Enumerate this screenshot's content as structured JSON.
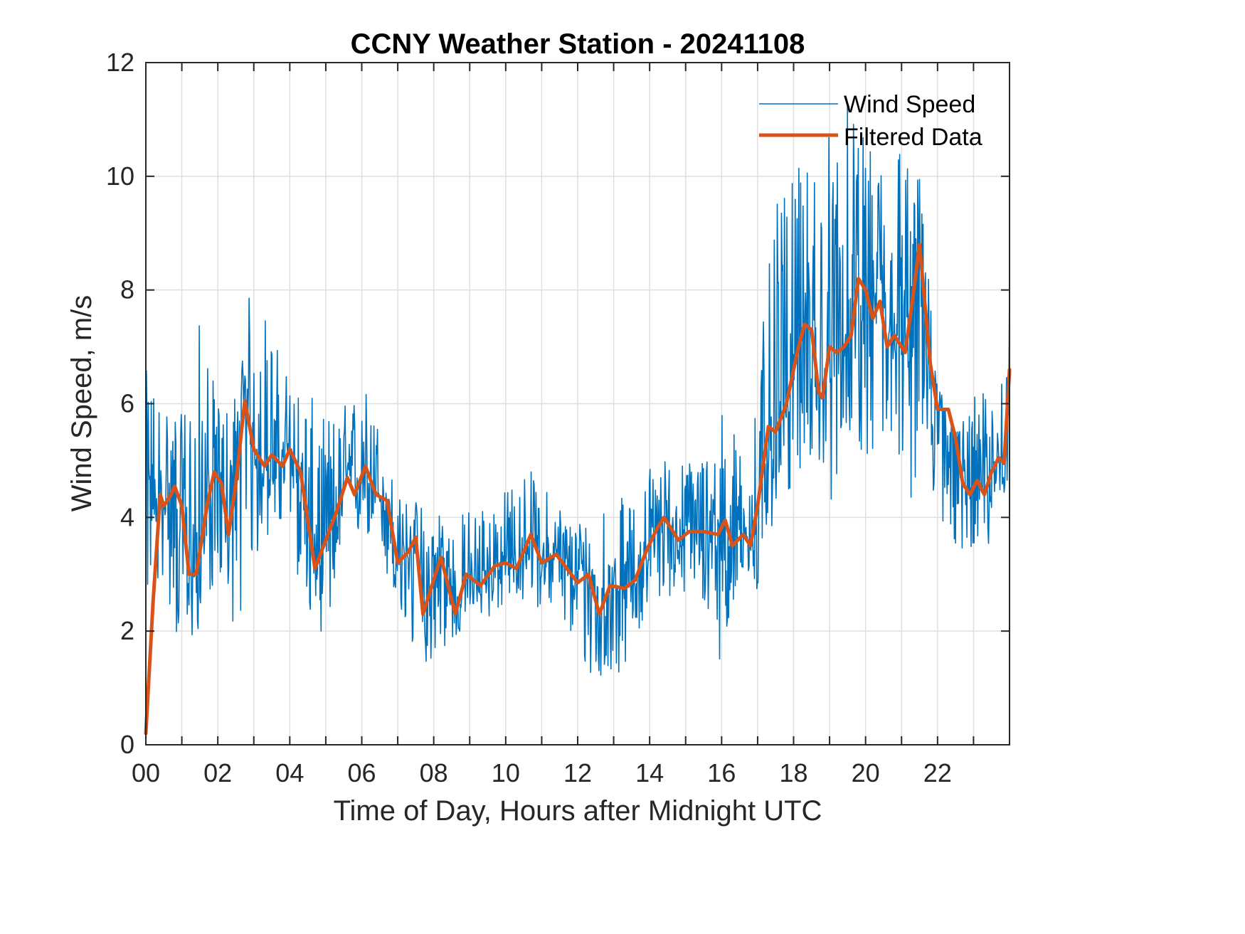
{
  "chart_data": {
    "type": "line",
    "title": "CCNY Weather Station - 20241108",
    "xlabel": "Time of Day, Hours after Midnight UTC",
    "ylabel": "Wind Speed, m/s",
    "xlim": [
      0,
      24
    ],
    "ylim": [
      0,
      12
    ],
    "grid": true,
    "legend_position": "top-right",
    "x_ticks": [
      0,
      2,
      4,
      6,
      8,
      10,
      12,
      14,
      16,
      18,
      20,
      22
    ],
    "x_tick_labels": [
      "00",
      "02",
      "04",
      "06",
      "08",
      "10",
      "12",
      "14",
      "16",
      "18",
      "20",
      "22"
    ],
    "x_minor_ticks": [
      1,
      3,
      5,
      7,
      9,
      11,
      13,
      15,
      17,
      19,
      21,
      23
    ],
    "y_ticks": [
      0,
      2,
      4,
      6,
      8,
      10,
      12
    ],
    "y_tick_labels": [
      "0",
      "2",
      "4",
      "6",
      "8",
      "10",
      "12"
    ],
    "colors": {
      "wind_speed": "#0072BD",
      "filtered": "#D95319",
      "axis": "#262626",
      "grid": "#DFDFDF"
    },
    "series": [
      {
        "name": "Wind Speed",
        "style": "thin-line",
        "description": "High-frequency raw samples; values given as the local band (low, high) around the filtered trend per sampled hour",
        "envelope": {
          "x": [
            0.0,
            0.5,
            1.0,
            1.5,
            2.0,
            2.5,
            3.0,
            3.5,
            4.0,
            4.5,
            5.0,
            5.5,
            6.0,
            6.5,
            7.0,
            7.5,
            8.0,
            8.5,
            9.0,
            9.5,
            10.0,
            10.5,
            11.0,
            11.5,
            12.0,
            12.5,
            13.0,
            13.5,
            14.0,
            14.5,
            15.0,
            15.5,
            16.0,
            16.5,
            17.0,
            17.5,
            18.0,
            18.5,
            19.0,
            19.5,
            20.0,
            20.5,
            21.0,
            21.5,
            22.0,
            22.5,
            23.0,
            23.5,
            24.0
          ],
          "low": [
            2.4,
            2.9,
            1.2,
            2.1,
            2.9,
            2.0,
            3.0,
            3.8,
            3.5,
            2.2,
            1.9,
            3.0,
            3.7,
            3.3,
            2.0,
            1.3,
            1.5,
            1.7,
            2.2,
            2.2,
            2.4,
            2.5,
            2.4,
            2.3,
            1.4,
            0.9,
            1.0,
            1.7,
            2.4,
            2.6,
            2.6,
            2.3,
            1.4,
            2.5,
            2.4,
            4.0,
            4.5,
            5.0,
            4.1,
            5.5,
            5.0,
            5.0,
            4.5,
            4.0,
            4.0,
            3.3,
            3.5,
            3.3,
            4.5
          ],
          "high": [
            6.6,
            6.3,
            5.8,
            7.6,
            6.0,
            6.3,
            8.5,
            7.3,
            6.5,
            6.2,
            5.8,
            6.0,
            6.5,
            5.7,
            4.4,
            4.3,
            4.4,
            4.0,
            4.2,
            4.4,
            4.5,
            5.0,
            4.6,
            4.3,
            4.0,
            4.4,
            4.5,
            4.2,
            5.0,
            5.1,
            5.0,
            5.3,
            6.0,
            5.4,
            6.5,
            9.5,
            10.0,
            10.5,
            11.0,
            11.3,
            10.6,
            10.5,
            11.0,
            10.0,
            6.5,
            5.5,
            6.2,
            6.3,
            8.1
          ]
        },
        "max_value": 11.3,
        "max_at_hour": 19.5
      },
      {
        "name": "Filtered Data",
        "style": "thick-line",
        "x": [
          0.0,
          0.2,
          0.4,
          0.5,
          0.7,
          0.8,
          1.0,
          1.2,
          1.4,
          1.7,
          1.9,
          2.1,
          2.3,
          2.5,
          2.75,
          3.0,
          3.3,
          3.5,
          3.8,
          4.0,
          4.3,
          4.7,
          5.0,
          5.3,
          5.6,
          5.8,
          6.1,
          6.4,
          6.7,
          7.0,
          7.3,
          7.5,
          7.7,
          8.2,
          8.6,
          8.9,
          9.3,
          9.7,
          10.0,
          10.3,
          10.7,
          11.0,
          11.4,
          11.7,
          12.0,
          12.3,
          12.6,
          12.9,
          13.3,
          13.6,
          13.9,
          14.2,
          14.4,
          14.8,
          15.1,
          15.5,
          15.9,
          16.1,
          16.3,
          16.6,
          16.8,
          17.0,
          17.3,
          17.5,
          17.8,
          18.1,
          18.3,
          18.5,
          18.7,
          18.8,
          19.0,
          19.2,
          19.4,
          19.6,
          19.8,
          20.0,
          20.2,
          20.4,
          20.6,
          20.8,
          21.1,
          21.3,
          21.5,
          21.8,
          22.0,
          22.3,
          22.5,
          22.7,
          22.9,
          23.1,
          23.3,
          23.5,
          23.7,
          23.85,
          24.0
        ],
        "values": [
          0.2,
          2.5,
          4.4,
          4.2,
          4.4,
          4.55,
          4.2,
          3.0,
          3.0,
          4.2,
          4.8,
          4.6,
          3.7,
          4.6,
          6.05,
          5.2,
          4.9,
          5.1,
          4.9,
          5.2,
          4.8,
          3.1,
          3.6,
          4.1,
          4.7,
          4.4,
          4.9,
          4.4,
          4.3,
          3.2,
          3.4,
          3.65,
          2.3,
          3.3,
          2.3,
          3.0,
          2.8,
          3.15,
          3.2,
          3.1,
          3.7,
          3.2,
          3.35,
          3.1,
          2.85,
          3.0,
          2.3,
          2.8,
          2.75,
          2.9,
          3.4,
          3.8,
          4.0,
          3.6,
          3.75,
          3.75,
          3.7,
          3.95,
          3.5,
          3.7,
          3.5,
          4.2,
          5.6,
          5.5,
          6.0,
          6.9,
          7.4,
          7.3,
          6.2,
          6.1,
          7.0,
          6.9,
          7.0,
          7.2,
          8.2,
          8.0,
          7.5,
          7.8,
          7.0,
          7.2,
          6.9,
          7.8,
          8.8,
          6.7,
          5.9,
          5.9,
          5.4,
          4.6,
          4.4,
          4.65,
          4.4,
          4.8,
          5.05,
          4.95,
          6.6
        ]
      }
    ],
    "legend": [
      {
        "label": "Wind Speed",
        "series": 0
      },
      {
        "label": "Filtered Data",
        "series": 1
      }
    ]
  }
}
